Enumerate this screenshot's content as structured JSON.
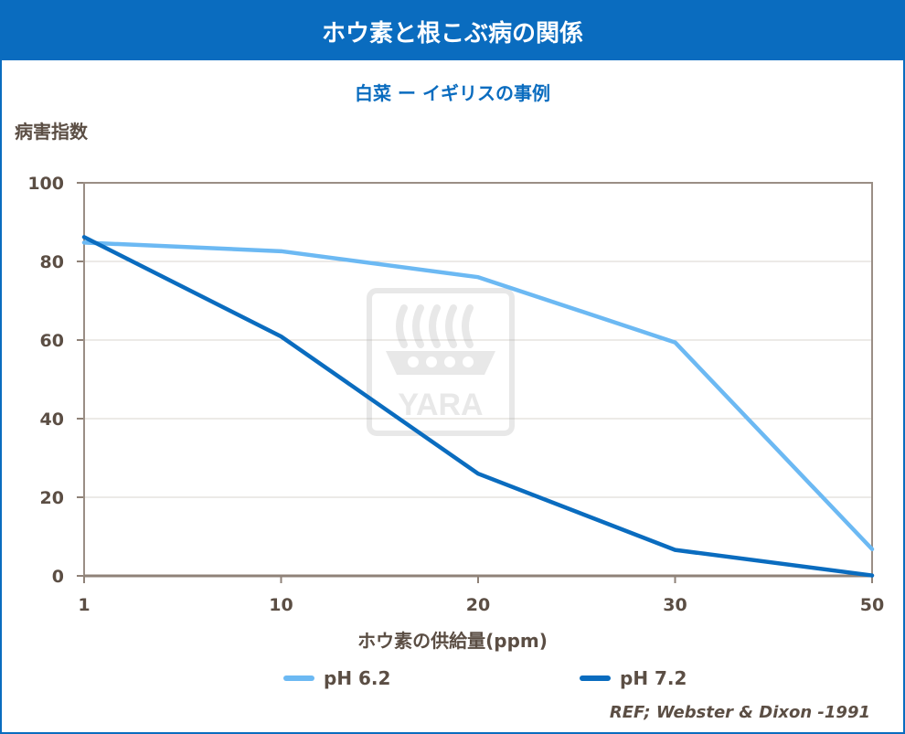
{
  "header": {
    "title": "ホウ素と根こぶ病の関係"
  },
  "chart_data": {
    "type": "line",
    "title": "ホウ素と根こぶ病の関係",
    "subtitle": "白菜 ー イギリスの事例",
    "ylabel": "病害指数",
    "xlabel": "ホウ素の供給量(ppm)",
    "categories": [
      "1",
      "10",
      "20",
      "30",
      "50"
    ],
    "ylim": [
      0,
      100
    ],
    "yticks": [
      "0",
      "20",
      "40",
      "60",
      "80",
      "100"
    ],
    "grid": true,
    "legend_position": "bottom",
    "series": [
      {
        "name": "pH 6.2",
        "color": "#6cb9f3",
        "values": [
          84.8,
          82.6,
          76.0,
          59.4,
          6.8
        ]
      },
      {
        "name": "pH 7.2",
        "color": "#0a6cbf",
        "values": [
          86.2,
          60.9,
          26.0,
          6.6,
          0.1
        ]
      }
    ],
    "watermark": "YARA",
    "reference": "REF; Webster & Dixon -1991"
  }
}
